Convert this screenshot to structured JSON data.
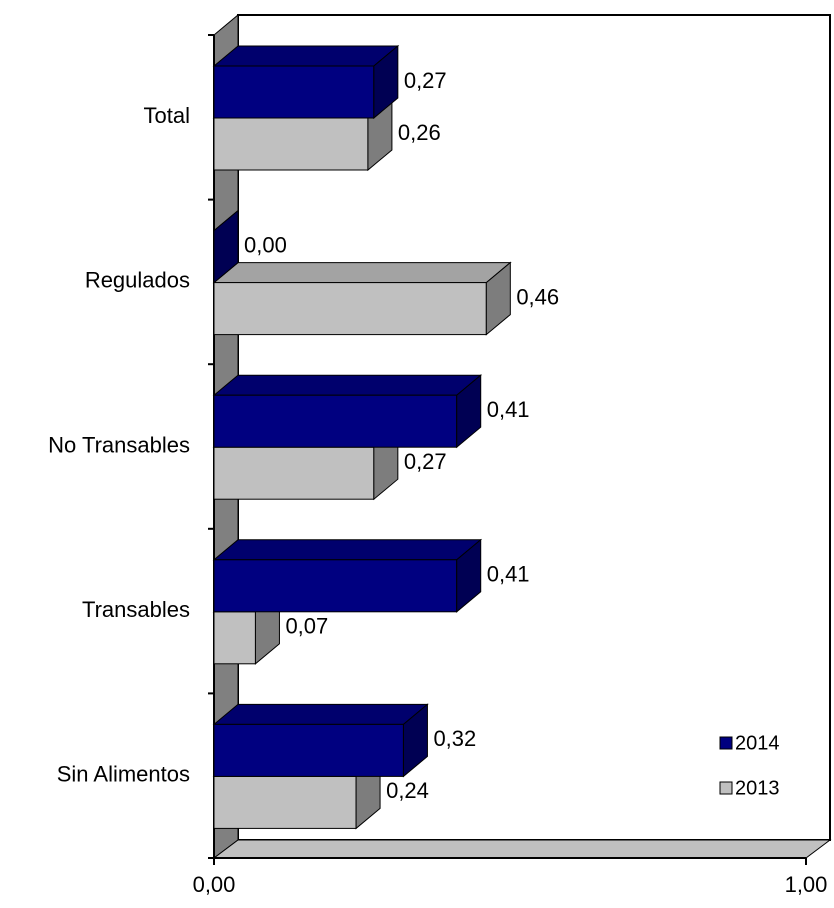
{
  "chart_data": {
    "type": "bar3d-horizontal",
    "categories": [
      "Total",
      "Regulados",
      "No Transables",
      "Transables",
      "Sin Alimentos"
    ],
    "series": [
      {
        "name": "2014",
        "color": "#000080",
        "values": [
          0.27,
          0.0,
          0.41,
          0.41,
          0.32
        ],
        "value_labels": [
          "0,27",
          "0,00",
          "0,41",
          "0,41",
          "0,32"
        ]
      },
      {
        "name": "2013",
        "color": "#c0c0c0",
        "values": [
          0.26,
          0.46,
          0.27,
          0.07,
          0.24
        ],
        "value_labels": [
          "0,26",
          "0,46",
          "0,27",
          "0,07",
          "0,24"
        ]
      }
    ],
    "xlim": [
      0,
      1
    ],
    "xticks": [
      {
        "value": 0,
        "label": "0,00"
      },
      {
        "value": 1,
        "label": "1,00"
      }
    ],
    "grid": false,
    "legend": "lower-right"
  }
}
